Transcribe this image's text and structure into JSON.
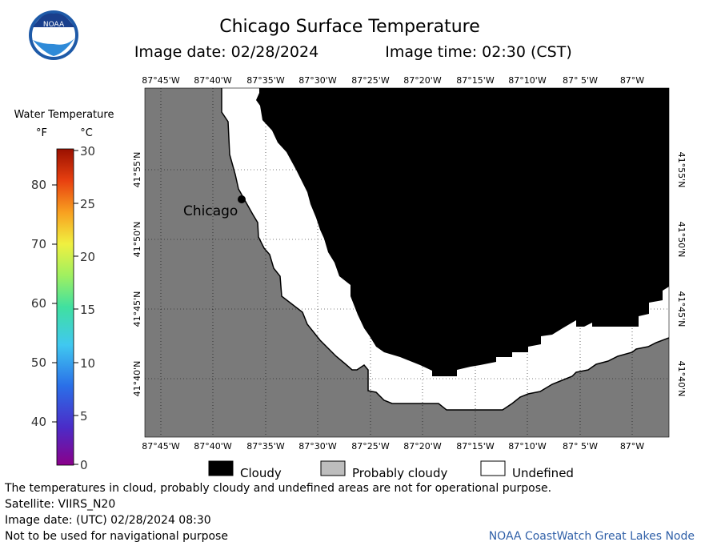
{
  "header": {
    "title": "Chicago Surface Temperature",
    "image_date_label": "Image date: 02/28/2024",
    "image_time_label": "Image time: 02:30 (CST)"
  },
  "logo": {
    "text": "NOAA"
  },
  "colorbar": {
    "title": "Water Temperature",
    "unit_f": "°F",
    "unit_c": "°C",
    "f_ticks": [
      "80",
      "70",
      "60",
      "50",
      "40"
    ],
    "c_ticks": [
      "30",
      "25",
      "20",
      "15",
      "10",
      "5",
      "0"
    ]
  },
  "map": {
    "lon_labels": [
      "87°45'W",
      "87°40'W",
      "87°35'W",
      "87°30'W",
      "87°25'W",
      "87°20'W",
      "87°15'W",
      "87°10'W",
      "87° 5'W",
      "87°W"
    ],
    "lat_labels": [
      "41°55'N",
      "41°50'N",
      "41°45'N",
      "41°40'N"
    ],
    "city_label": "Chicago",
    "colors": {
      "land": "#7a7a7a",
      "cloudy": "#000000",
      "undefined": "#ffffff",
      "probably_cloudy": "#bdbdbd"
    }
  },
  "legend": {
    "cloudy": "Cloudy",
    "probably_cloudy": "Probably cloudy",
    "undefined": "Undefined"
  },
  "footer": {
    "disclaimer": "The temperatures in cloud, probably cloudy and undefined areas are not for operational purpose.",
    "satellite": "Satellite: VIIRS_N20",
    "utc_date": "Image date: (UTC) 02/28/2024  08:30",
    "navigation": "Not to be used for navigational purpose",
    "credit": "NOAA CoastWatch Great Lakes Node"
  }
}
